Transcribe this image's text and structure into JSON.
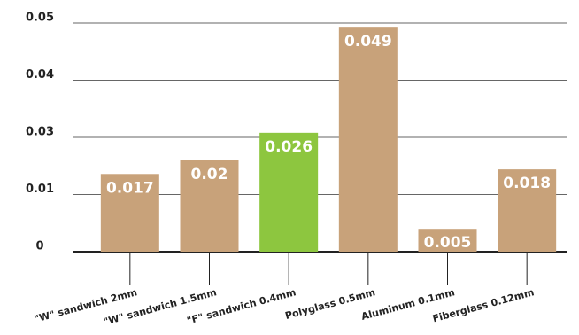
{
  "chart_data": {
    "type": "bar",
    "categories": [
      "\"W\" sandwich 2mm",
      "\"W\" sandwich 1.5mm",
      "\"F\" sandwich 0.4mm",
      "Polyglass 0.5mm",
      "Aluminum 0.1mm",
      "Fiberglass 0.12mm"
    ],
    "values": [
      0.017,
      0.02,
      0.026,
      0.049,
      0.005,
      0.018
    ],
    "colors": [
      "#c8a27a",
      "#c8a27a",
      "#8dc63f",
      "#c8a27a",
      "#c8a27a",
      "#c8a27a"
    ],
    "ylim": [
      0,
      0.05
    ],
    "yticks": [
      0,
      {
        "value": 0.0125,
        "label": "0.01"
      },
      {
        "value": 0.025,
        "label": "0.03"
      },
      {
        "value": 0.0375,
        "label": "0.04"
      },
      0.05
    ],
    "grid": true
  }
}
